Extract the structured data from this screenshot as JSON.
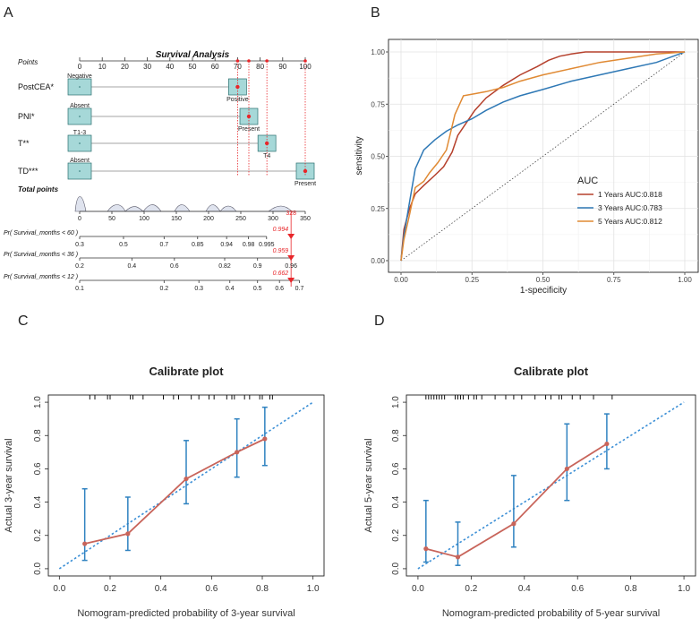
{
  "panel_labels": {
    "a": "A",
    "b": "B",
    "c": "C",
    "d": "D"
  },
  "colors": {
    "box_fill": "#a6d8d8",
    "box_stroke": "#2a6f6f",
    "red": "#e8262a",
    "density": "#dfe3ee",
    "roc_1": "#b5402c",
    "roc_3": "#2e78b5",
    "roc_5": "#e08a34",
    "cal_line": "#c8645a",
    "cal_err": "#2f82c0",
    "cal_ref": "#3b8fd6"
  },
  "chart_data": [
    {
      "type": "nomogram",
      "title": "Survival Analysis",
      "points_label": "Points",
      "points_ticks": [
        "0",
        "10",
        "20",
        "30",
        "40",
        "50",
        "60",
        "70",
        "80",
        "90",
        "100"
      ],
      "points_values": [
        0,
        10,
        20,
        30,
        40,
        50,
        60,
        70,
        80,
        90,
        100
      ],
      "variables": [
        {
          "name": "PostCEA*",
          "low": "Negative",
          "high": "Positive",
          "low_points": 0,
          "high_points": 70,
          "selected_points": 70
        },
        {
          "name": "PNI*",
          "low": "Absent",
          "high": "Present",
          "low_points": 0,
          "high_points": 75,
          "selected_points": 75
        },
        {
          "name": "T**",
          "low": "T1-3",
          "high": "T4",
          "low_points": 0,
          "high_points": 83,
          "selected_points": 83
        },
        {
          "name": "TD***",
          "low": "Absent",
          "high": "Present",
          "low_points": 0,
          "high_points": 100,
          "selected_points": 100
        }
      ],
      "total_label": "Total points",
      "total_ticks": [
        "0",
        "50",
        "100",
        "150",
        "200",
        "250",
        "300",
        "350"
      ],
      "total_values": [
        0,
        50,
        100,
        150,
        200,
        250,
        300,
        350
      ],
      "total_selected": "328",
      "total_selected_value": 328,
      "survival_scales": [
        {
          "label": "Pr( Survival_months < 60 )",
          "ticks": [
            "0.3",
            "0.5",
            "0.7",
            "0.85",
            "0.94",
            "0.98",
            "0.995"
          ],
          "tick_points": [
            0,
            68,
            131,
            183,
            228,
            262,
            290
          ],
          "result": "0.994",
          "result_points": 328
        },
        {
          "label": "Pr( Survival_months < 36 )",
          "ticks": [
            "0.2",
            "0.4",
            "0.6",
            "0.82",
            "0.9",
            "0.96"
          ],
          "tick_points": [
            0,
            81,
            147,
            225,
            276,
            328
          ],
          "result": "0.959",
          "result_points": 328
        },
        {
          "label": "Pr( Survival_months < 12 )",
          "ticks": [
            "0.1",
            "0.2",
            "0.3",
            "0.4",
            "0.5",
            "0.6",
            "0.7"
          ],
          "tick_points": [
            0,
            131,
            185,
            233,
            276,
            310,
            341
          ],
          "result": "0.662",
          "result_points": 328
        }
      ]
    },
    {
      "type": "line",
      "title": "ROC",
      "xlabel": "1-specificity",
      "ylabel": "sensitivity",
      "xlim": [
        0,
        1
      ],
      "ylim": [
        0,
        1
      ],
      "ticks": [
        "0.00",
        "0.25",
        "0.50",
        "0.75",
        "1.00"
      ],
      "tick_values": [
        0,
        0.25,
        0.5,
        0.75,
        1
      ],
      "legend_title": "AUC",
      "legend_position": "right",
      "series": [
        {
          "name": "1 Years AUC:0.818",
          "x": [
            0,
            0.01,
            0.03,
            0.05,
            0.08,
            0.12,
            0.15,
            0.18,
            0.2,
            0.23,
            0.26,
            0.3,
            0.36,
            0.42,
            0.48,
            0.52,
            0.56,
            0.6,
            0.65,
            0.75,
            0.85,
            1
          ],
          "y": [
            0,
            0.15,
            0.25,
            0.32,
            0.36,
            0.41,
            0.45,
            0.52,
            0.6,
            0.66,
            0.72,
            0.78,
            0.84,
            0.89,
            0.93,
            0.96,
            0.98,
            0.99,
            1,
            1,
            1,
            1
          ]
        },
        {
          "name": "3 Years AUC:0.783",
          "x": [
            0,
            0.01,
            0.03,
            0.05,
            0.08,
            0.12,
            0.16,
            0.2,
            0.25,
            0.3,
            0.36,
            0.42,
            0.5,
            0.6,
            0.7,
            0.8,
            0.9,
            1
          ],
          "y": [
            0,
            0.12,
            0.28,
            0.44,
            0.53,
            0.58,
            0.62,
            0.65,
            0.68,
            0.72,
            0.76,
            0.79,
            0.82,
            0.86,
            0.89,
            0.92,
            0.95,
            1
          ]
        },
        {
          "name": "5 Years AUC:0.812",
          "x": [
            0,
            0.01,
            0.03,
            0.05,
            0.08,
            0.1,
            0.13,
            0.16,
            0.19,
            0.22,
            0.26,
            0.3,
            0.36,
            0.42,
            0.5,
            0.6,
            0.7,
            0.8,
            0.9,
            1
          ],
          "y": [
            0,
            0.1,
            0.22,
            0.35,
            0.38,
            0.42,
            0.47,
            0.53,
            0.7,
            0.79,
            0.8,
            0.81,
            0.83,
            0.86,
            0.89,
            0.92,
            0.95,
            0.97,
            0.99,
            1
          ]
        }
      ]
    },
    {
      "type": "line",
      "title": "Calibrate plot",
      "xlabel": "Nomogram-predicted probability of 3-year survival",
      "ylabel": "Actual 3-year survival",
      "xlim": [
        0,
        1
      ],
      "ylim": [
        0,
        1
      ],
      "xticks": [
        "0.0",
        "0.2",
        "0.4",
        "0.6",
        "0.8",
        "1.0"
      ],
      "yticks": [
        "0.0",
        "0.2",
        "0.4",
        "0.6",
        "0.8",
        "1.0"
      ],
      "tick_values": [
        0,
        0.2,
        0.4,
        0.6,
        0.8,
        1
      ],
      "points": {
        "x": [
          0.1,
          0.27,
          0.5,
          0.7,
          0.81
        ],
        "y": [
          0.15,
          0.21,
          0.54,
          0.7,
          0.78
        ]
      },
      "error_low": [
        0.05,
        0.11,
        0.39,
        0.55,
        0.62
      ],
      "error_high": [
        0.48,
        0.43,
        0.77,
        0.9,
        0.97
      ],
      "rug": [
        0.12,
        0.14,
        0.19,
        0.2,
        0.28,
        0.29,
        0.33,
        0.41,
        0.45,
        0.47,
        0.52,
        0.55,
        0.59,
        0.61,
        0.66,
        0.68,
        0.69,
        0.73,
        0.75,
        0.79,
        0.8,
        0.83,
        0.84
      ]
    },
    {
      "type": "line",
      "title": "Calibrate plot",
      "xlabel": "Nomogram-predicted probability of 5-year survival",
      "ylabel": "Actual 5-year survival",
      "xlim": [
        0,
        1
      ],
      "ylim": [
        0,
        1
      ],
      "xticks": [
        "0.0",
        "0.2",
        "0.4",
        "0.6",
        "0.8",
        "1.0"
      ],
      "yticks": [
        "0.0",
        "0.2",
        "0.4",
        "0.6",
        "0.8",
        "1.0"
      ],
      "tick_values": [
        0,
        0.2,
        0.4,
        0.6,
        0.8,
        1
      ],
      "points": {
        "x": [
          0.03,
          0.15,
          0.36,
          0.56,
          0.71
        ],
        "y": [
          0.12,
          0.07,
          0.27,
          0.6,
          0.75
        ]
      },
      "error_low": [
        0.04,
        0.02,
        0.13,
        0.41,
        0.6
      ],
      "error_high": [
        0.41,
        0.28,
        0.56,
        0.87,
        0.93
      ],
      "rug": [
        0.03,
        0.04,
        0.05,
        0.06,
        0.07,
        0.08,
        0.09,
        0.1,
        0.14,
        0.15,
        0.16,
        0.17,
        0.19,
        0.21,
        0.22,
        0.24,
        0.29,
        0.33,
        0.36,
        0.39,
        0.44,
        0.48,
        0.5,
        0.53,
        0.54,
        0.58,
        0.61,
        0.66,
        0.73
      ]
    }
  ]
}
